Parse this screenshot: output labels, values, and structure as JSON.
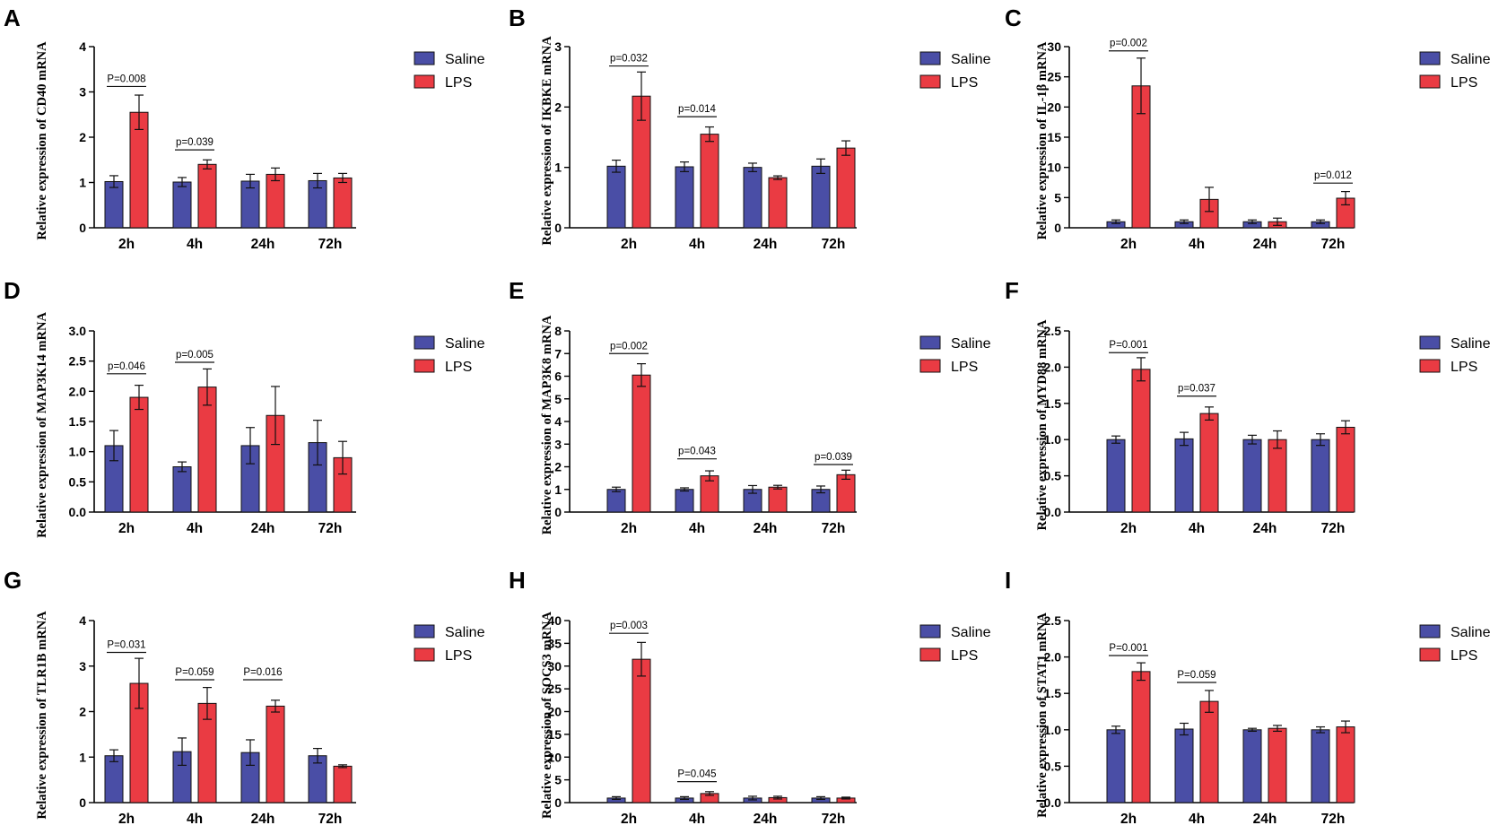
{
  "colors": {
    "saline": "#4a4ea6",
    "lps": "#ea3b43",
    "axis": "#000000"
  },
  "legend": {
    "labels": [
      "Saline",
      "LPS"
    ]
  },
  "chart_data": [
    {
      "type": "bar",
      "panel": "A",
      "ylabel": "Relative expression of  CD40 mRNA",
      "categories": [
        "2h",
        "4h",
        "24h",
        "72h"
      ],
      "ylim": [
        0,
        4
      ],
      "yticks": [
        "0",
        "1",
        "2",
        "3",
        "4"
      ],
      "series": [
        {
          "name": "Saline",
          "values": [
            1.02,
            1.01,
            1.03,
            1.04
          ],
          "errors": [
            0.13,
            0.1,
            0.15,
            0.16
          ]
        },
        {
          "name": "LPS",
          "values": [
            2.55,
            1.4,
            1.18,
            1.1
          ],
          "errors": [
            0.38,
            0.1,
            0.14,
            0.1
          ]
        }
      ],
      "annotations": [
        {
          "label": "P=0.008",
          "category": 0,
          "y": 3.12
        },
        {
          "label": "p=0.039",
          "category": 1,
          "y": 1.72
        }
      ]
    },
    {
      "type": "bar",
      "panel": "B",
      "ylabel": "Relative expression of  IKBKE mRNA",
      "categories": [
        "2h",
        "4h",
        "24h",
        "72h"
      ],
      "ylim": [
        0,
        3
      ],
      "yticks": [
        "0",
        "1",
        "2",
        "3"
      ],
      "series": [
        {
          "name": "Saline",
          "values": [
            1.02,
            1.01,
            1.0,
            1.02
          ],
          "errors": [
            0.1,
            0.08,
            0.07,
            0.12
          ]
        },
        {
          "name": "LPS",
          "values": [
            2.18,
            1.55,
            0.83,
            1.32
          ],
          "errors": [
            0.4,
            0.12,
            0.03,
            0.12
          ]
        }
      ],
      "annotations": [
        {
          "label": "p=0.032",
          "category": 0,
          "y": 2.68
        },
        {
          "label": "p=0.014",
          "category": 1,
          "y": 1.84
        }
      ]
    },
    {
      "type": "bar",
      "panel": "C",
      "ylabel": "Relative expression of  IL-1β mRNA",
      "categories": [
        "2h",
        "4h",
        "24h",
        "72h"
      ],
      "ylim": [
        0,
        30
      ],
      "yticks": [
        "0",
        "5",
        "10",
        "15",
        "20",
        "25",
        "30"
      ],
      "series": [
        {
          "name": "Saline",
          "values": [
            1.0,
            1.0,
            1.0,
            1.0
          ],
          "errors": [
            0.3,
            0.3,
            0.3,
            0.3
          ]
        },
        {
          "name": "LPS",
          "values": [
            23.5,
            4.7,
            1.0,
            4.9
          ],
          "errors": [
            4.6,
            2.0,
            0.6,
            1.1
          ]
        }
      ],
      "annotations": [
        {
          "label": "p=0.002",
          "category": 0,
          "y": 29.3
        },
        {
          "label": "p=0.012",
          "category": 3,
          "y": 7.4
        }
      ]
    },
    {
      "type": "bar",
      "panel": "D",
      "ylabel": "Relative expression of  MAP3K14 mRNA",
      "categories": [
        "2h",
        "4h",
        "24h",
        "72h"
      ],
      "ylim": [
        0,
        3.0
      ],
      "yticks": [
        "0.0",
        "0.5",
        "1.0",
        "1.5",
        "2.0",
        "2.5",
        "3.0"
      ],
      "series": [
        {
          "name": "Saline",
          "values": [
            1.1,
            0.75,
            1.1,
            1.15
          ],
          "errors": [
            0.25,
            0.08,
            0.3,
            0.37
          ]
        },
        {
          "name": "LPS",
          "values": [
            1.9,
            2.07,
            1.6,
            0.9
          ],
          "errors": [
            0.2,
            0.3,
            0.48,
            0.27
          ]
        }
      ],
      "annotations": [
        {
          "label": "p=0.046",
          "category": 0,
          "y": 2.29
        },
        {
          "label": "p=0.005",
          "category": 1,
          "y": 2.48
        }
      ]
    },
    {
      "type": "bar",
      "panel": "E",
      "ylabel": "Relative expression of  MAP3K8 mRNA",
      "categories": [
        "2h",
        "4h",
        "24h",
        "72h"
      ],
      "ylim": [
        0,
        8
      ],
      "yticks": [
        "0",
        "1",
        "2",
        "3",
        "4",
        "5",
        "6",
        "7",
        "8"
      ],
      "series": [
        {
          "name": "Saline",
          "values": [
            1.0,
            1.0,
            1.0,
            1.0
          ],
          "errors": [
            0.1,
            0.07,
            0.17,
            0.15
          ]
        },
        {
          "name": "LPS",
          "values": [
            6.05,
            1.6,
            1.1,
            1.65
          ],
          "errors": [
            0.5,
            0.22,
            0.08,
            0.2
          ]
        }
      ],
      "annotations": [
        {
          "label": "p=0.002",
          "category": 0,
          "y": 7.0
        },
        {
          "label": "p=0.043",
          "category": 1,
          "y": 2.35
        },
        {
          "label": "p=0.039",
          "category": 3,
          "y": 2.1
        }
      ]
    },
    {
      "type": "bar",
      "panel": "F",
      "ylabel": "Relative expression of  MYD88 mRNA",
      "categories": [
        "2h",
        "4h",
        "24h",
        "72h"
      ],
      "ylim": [
        0,
        2.5
      ],
      "yticks": [
        "0.0",
        "0.5",
        "1.0",
        "1.5",
        "2.0",
        "2.5"
      ],
      "series": [
        {
          "name": "Saline",
          "values": [
            1.0,
            1.01,
            1.0,
            1.0
          ],
          "errors": [
            0.05,
            0.09,
            0.06,
            0.08
          ]
        },
        {
          "name": "LPS",
          "values": [
            1.97,
            1.36,
            1.0,
            1.17
          ],
          "errors": [
            0.16,
            0.09,
            0.12,
            0.09
          ]
        }
      ],
      "annotations": [
        {
          "label": "P=0.001",
          "category": 0,
          "y": 2.2
        },
        {
          "label": "p=0.037",
          "category": 1,
          "y": 1.6
        }
      ]
    },
    {
      "type": "bar",
      "panel": "G",
      "ylabel": "Relative expression of  TLR1B mRNA",
      "categories": [
        "2h",
        "4h",
        "24h",
        "72h"
      ],
      "ylim": [
        0,
        4
      ],
      "yticks": [
        "0",
        "1",
        "2",
        "3",
        "4"
      ],
      "series": [
        {
          "name": "Saline",
          "values": [
            1.03,
            1.12,
            1.1,
            1.03
          ],
          "errors": [
            0.13,
            0.3,
            0.28,
            0.16
          ]
        },
        {
          "name": "LPS",
          "values": [
            2.62,
            2.18,
            2.12,
            0.8
          ],
          "errors": [
            0.55,
            0.35,
            0.13,
            0.03
          ]
        }
      ],
      "annotations": [
        {
          "label": "P=0.031",
          "category": 0,
          "y": 3.3
        },
        {
          "label": "P=0.059",
          "category": 1,
          "y": 2.7
        },
        {
          "label": "P=0.016",
          "category": 2,
          "y": 2.7
        }
      ]
    },
    {
      "type": "bar",
      "panel": "H",
      "ylabel": "Relative expression of  SOCS3  mRNA",
      "categories": [
        "2h",
        "4h",
        "24h",
        "72h"
      ],
      "ylim": [
        0,
        40
      ],
      "yticks": [
        "0",
        "5",
        "10",
        "15",
        "20",
        "25",
        "30",
        "35",
        "40"
      ],
      "series": [
        {
          "name": "Saline",
          "values": [
            1.0,
            1.0,
            1.0,
            1.0
          ],
          "errors": [
            0.3,
            0.3,
            0.4,
            0.3
          ]
        },
        {
          "name": "LPS",
          "values": [
            31.5,
            2.0,
            1.1,
            1.0
          ],
          "errors": [
            3.7,
            0.4,
            0.3,
            0.2
          ]
        }
      ],
      "annotations": [
        {
          "label": "p=0.003",
          "category": 0,
          "y": 37.2
        },
        {
          "label": "P=0.045",
          "category": 1,
          "y": 4.6
        }
      ]
    },
    {
      "type": "bar",
      "panel": "I",
      "ylabel": "Relative expression of  STAT1 mRNA",
      "categories": [
        "2h",
        "4h",
        "24h",
        "72h"
      ],
      "ylim": [
        0,
        2.5
      ],
      "yticks": [
        "0.0",
        "0.5",
        "1.0",
        "1.5",
        "2.0",
        "2.5"
      ],
      "series": [
        {
          "name": "Saline",
          "values": [
            1.0,
            1.01,
            1.0,
            1.0
          ],
          "errors": [
            0.05,
            0.08,
            0.02,
            0.04
          ]
        },
        {
          "name": "LPS",
          "values": [
            1.8,
            1.39,
            1.02,
            1.04
          ],
          "errors": [
            0.12,
            0.15,
            0.04,
            0.08
          ]
        }
      ],
      "annotations": [
        {
          "label": "P=0.001",
          "category": 0,
          "y": 2.02
        },
        {
          "label": "P=0.059",
          "category": 1,
          "y": 1.65
        }
      ]
    }
  ]
}
